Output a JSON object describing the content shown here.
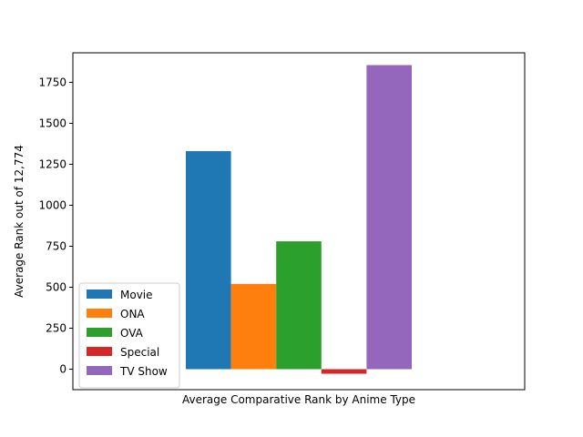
{
  "chart_data": {
    "type": "bar",
    "xlabel": "Average Comparative Rank by Anime Type",
    "ylabel": "Average Rank out of 12,774",
    "ylim": [
      -125,
      1930
    ],
    "yticks": [
      0,
      250,
      500,
      750,
      1000,
      1250,
      1500,
      1750
    ],
    "grid": false,
    "legend_position": "lower-left",
    "series": [
      {
        "name": "Movie",
        "value": 1330,
        "color": "#1f77b4"
      },
      {
        "name": "ONA",
        "value": 520,
        "color": "#ff7f0e"
      },
      {
        "name": "OVA",
        "value": 780,
        "color": "#2ca02c"
      },
      {
        "name": "Special",
        "value": -28,
        "color": "#d62728"
      },
      {
        "name": "TV Show",
        "value": 1855,
        "color": "#9467bd"
      }
    ]
  }
}
